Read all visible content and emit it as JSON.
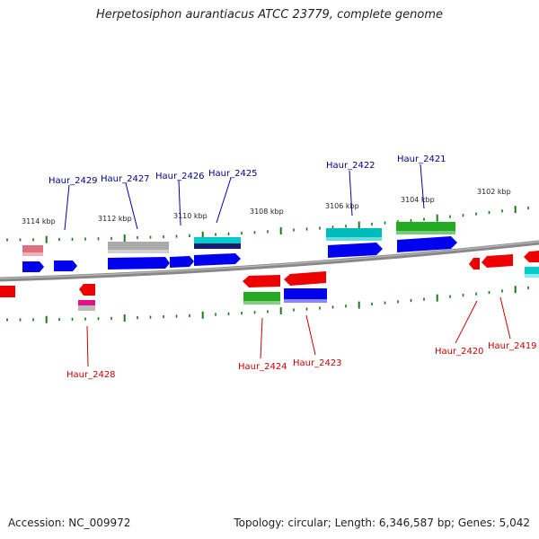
{
  "title": "Herpetosiphon aurantiacus ATCC 23779, complete genome",
  "footer": {
    "accession": "Accession: NC_009972",
    "topology": "Topology: circular; Length: 6,346,587 bp; Genes: 5,042"
  },
  "ruler_labels": [
    "3114 kbp",
    "3112 kbp",
    "3110 kbp",
    "3108 kbp",
    "3106 kbp",
    "3104 kbp",
    "3102 kbp"
  ],
  "genes_forward": [
    "Haur_2429",
    "Haur_2427",
    "Haur_2426",
    "Haur_2425",
    "Haur_2422",
    "Haur_2421"
  ],
  "genes_reverse": [
    "Haur_2428",
    "Haur_2424",
    "Haur_2423",
    "Haur_2420",
    "Haur_2419"
  ],
  "colors": {
    "forward_label": "#00008b",
    "reverse_label": "#cc0000",
    "cds_blue": "#0000ee",
    "cds_red": "#ee0000",
    "cds_green": "#22aa22",
    "cds_cyan": "#00cccc",
    "cds_grey": "#aaaaaa",
    "cds_pink": "#e06070",
    "cds_magenta": "#dd1188",
    "cds_navy": "#1a1a6e",
    "tick": "#1a7a1a",
    "backbone": "#808080"
  }
}
